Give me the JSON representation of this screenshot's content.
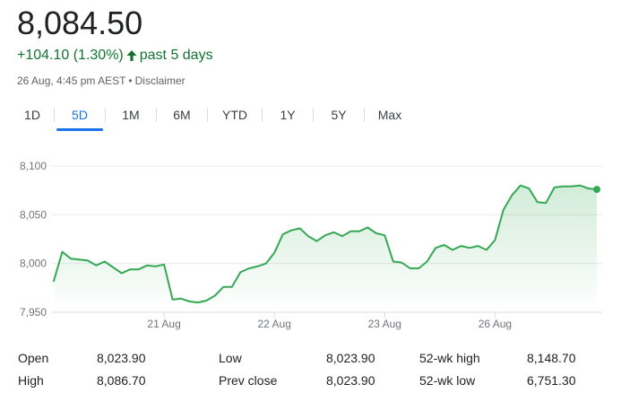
{
  "quote": {
    "price": "8,084.50",
    "change": "+104.10 (1.30%)",
    "period": "past 5 days",
    "timestamp": "26 Aug, 4:45 pm AEST",
    "separator": "•",
    "disclaimer": "Disclaimer"
  },
  "colors": {
    "positive": "#137333",
    "line": "#34a853",
    "accent": "#1a73e8"
  },
  "tabs": [
    {
      "label": "1D",
      "active": false
    },
    {
      "label": "5D",
      "active": true
    },
    {
      "label": "1M",
      "active": false
    },
    {
      "label": "6M",
      "active": false
    },
    {
      "label": "YTD",
      "active": false
    },
    {
      "label": "1Y",
      "active": false
    },
    {
      "label": "5Y",
      "active": false
    },
    {
      "label": "Max",
      "active": false
    }
  ],
  "chart_data": {
    "type": "area",
    "ylim": [
      7950,
      8100
    ],
    "yticks": [
      {
        "label": "8,100",
        "value": 8100
      },
      {
        "label": "8,050",
        "value": 8050
      },
      {
        "label": "8,000",
        "value": 8000
      },
      {
        "label": "7,950",
        "value": 7950
      }
    ],
    "xticks": [
      {
        "label": "21 Aug",
        "index": 13
      },
      {
        "label": "22 Aug",
        "index": 26
      },
      {
        "label": "23 Aug",
        "index": 39
      },
      {
        "label": "26 Aug",
        "index": 52
      }
    ],
    "grid": true,
    "series": [
      {
        "values": [
          7982,
          8012,
          8005,
          8004,
          8003,
          7998,
          8002,
          7996,
          7990,
          7994,
          7994,
          7998,
          7997,
          7999,
          7963,
          7964,
          7961,
          7960,
          7962,
          7967,
          7976,
          7976,
          7991,
          7995,
          7997,
          8000,
          8011,
          8030,
          8034,
          8036,
          8028,
          8023,
          8029,
          8032,
          8028,
          8033,
          8033,
          8037,
          8031,
          8029,
          8002,
          8001,
          7995,
          7995,
          8002,
          8016,
          8019,
          8014,
          8018,
          8016,
          8018,
          8014,
          8024,
          8055,
          8070,
          8080,
          8077,
          8063,
          8062,
          8078,
          8079,
          8079,
          8080,
          8077,
          8076
        ]
      }
    ]
  },
  "stats": {
    "rows": [
      [
        {
          "label": "Open",
          "value": "8,023.90"
        },
        {
          "label": "Low",
          "value": "8,023.90"
        },
        {
          "label": "52-wk high",
          "value": "8,148.70"
        }
      ],
      [
        {
          "label": "High",
          "value": "8,086.70"
        },
        {
          "label": "Prev close",
          "value": "8,023.90"
        },
        {
          "label": "52-wk low",
          "value": "6,751.30"
        }
      ]
    ]
  }
}
